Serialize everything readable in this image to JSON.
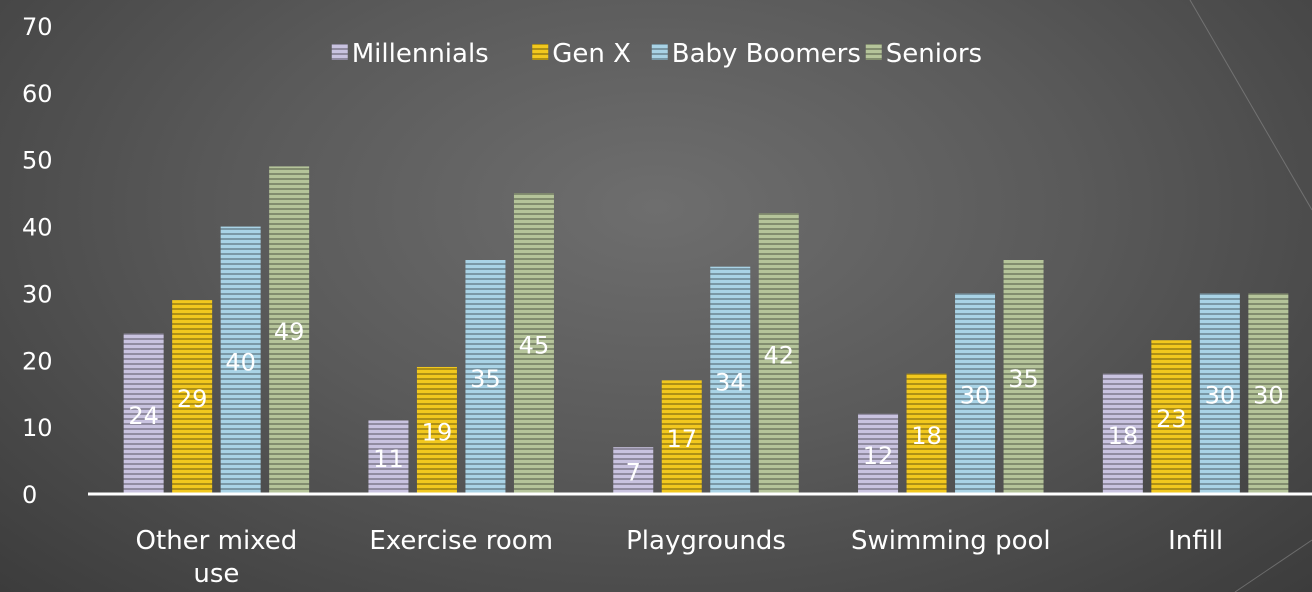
{
  "chart_data": {
    "type": "bar",
    "categories": [
      "Other mixed use",
      "Exercise room",
      "Playgrounds",
      "Swimming pool",
      "Infill"
    ],
    "category_lines": [
      [
        "Other mixed",
        "use"
      ],
      [
        "Exercise room"
      ],
      [
        "Playgrounds"
      ],
      [
        "Swimming pool"
      ],
      [
        "Infill"
      ]
    ],
    "series": [
      {
        "name": "Millennials",
        "values": [
          24,
          11,
          7,
          12,
          18
        ],
        "color": "#c9c3e0"
      },
      {
        "name": "Gen X",
        "values": [
          29,
          19,
          17,
          18,
          23
        ],
        "color": "#f2c81e"
      },
      {
        "name": "Baby Boomers",
        "values": [
          40,
          35,
          34,
          30,
          30
        ],
        "color": "#a9d3e6"
      },
      {
        "name": "Seniors",
        "values": [
          49,
          45,
          42,
          35,
          30
        ],
        "color": "#b5c49a"
      }
    ],
    "ylim": [
      0,
      70
    ],
    "yticks": [
      0,
      10,
      20,
      30,
      40,
      50,
      60,
      70
    ],
    "grid": false,
    "legend_position": "top",
    "data_labels": true,
    "fill_pattern": "horizontal-stripes"
  }
}
